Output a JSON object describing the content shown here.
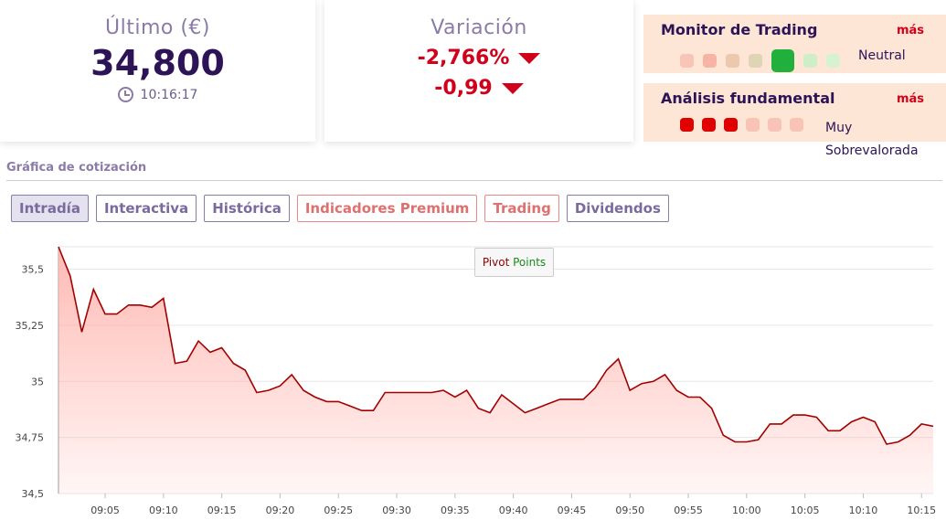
{
  "last": {
    "title": "Último (€)",
    "price": "34,800",
    "time": "10:16:17"
  },
  "variation": {
    "title": "Variación",
    "pct": "-2,766%",
    "abs": "-0,99"
  },
  "monitor": {
    "title": "Monitor de Trading",
    "more": "más",
    "status": "Neutral",
    "dots": [
      "#f9c4b8",
      "#f7b3a4",
      "#ecc8ad",
      "#e0d4b6",
      "#22b03c",
      "#cdeec6",
      "#d7f2d0"
    ]
  },
  "fundamental": {
    "title": "Análisis fundamental",
    "more": "más",
    "status": "Muy Sobrevalorada",
    "dots": [
      "#e00000",
      "#e00000",
      "#e00000",
      "#f9c4b8",
      "#f9c4b8",
      "#f9c4b8"
    ]
  },
  "section_label": "Gráfica de cotización",
  "tabs": [
    {
      "label": "Intradía",
      "kind": "active"
    },
    {
      "label": "Interactiva",
      "kind": "normal"
    },
    {
      "label": "Histórica",
      "kind": "normal"
    },
    {
      "label": "Indicadores Premium",
      "kind": "premium"
    },
    {
      "label": "Trading",
      "kind": "premium"
    },
    {
      "label": "Dividendos",
      "kind": "normal"
    }
  ],
  "pivot": {
    "word1": "Pivot",
    "word2": "Points"
  },
  "colors": {
    "line": "#a30000",
    "fill": "#ffb6b0",
    "accent": "#d0021b"
  },
  "chart_data": {
    "type": "area",
    "ylim": [
      34.5,
      35.6
    ],
    "y_ticks": [
      "35,5",
      "35,25",
      "35",
      "34,75",
      "34,5"
    ],
    "y_tick_values": [
      35.5,
      35.25,
      35.0,
      34.75,
      34.5
    ],
    "x_ticks": [
      "09:05",
      "09:10",
      "09:15",
      "09:20",
      "09:25",
      "09:30",
      "09:35",
      "09:40",
      "09:45",
      "09:50",
      "09:55",
      "10:00",
      "10:05",
      "10:10",
      "10:15"
    ],
    "x_tick_minutes": [
      5,
      10,
      15,
      20,
      25,
      30,
      35,
      40,
      45,
      50,
      55,
      60,
      65,
      70,
      75
    ],
    "x_range_minutes": [
      1,
      76
    ],
    "series": [
      {
        "t": [
          1,
          2,
          3,
          4,
          5,
          6,
          7,
          8,
          9,
          10,
          11,
          12,
          13,
          14,
          15,
          16,
          17,
          18,
          19,
          20,
          21,
          22,
          23,
          24,
          25,
          26,
          27,
          28,
          29,
          30,
          31,
          32,
          33,
          34,
          35,
          36,
          37,
          38,
          39,
          40,
          41,
          42,
          43,
          44,
          45,
          46,
          47,
          48,
          49,
          50,
          51,
          52,
          53,
          54,
          55,
          56,
          57,
          58,
          59,
          60,
          61,
          62,
          63,
          64,
          65,
          66,
          67,
          68,
          69,
          70,
          71,
          72,
          73,
          74,
          75,
          76
        ],
        "values": [
          35.6,
          35.47,
          35.22,
          35.41,
          35.3,
          35.3,
          35.34,
          35.34,
          35.33,
          35.37,
          35.08,
          35.09,
          35.18,
          35.13,
          35.15,
          35.08,
          35.05,
          34.95,
          34.96,
          34.98,
          35.03,
          34.96,
          34.93,
          34.91,
          34.91,
          34.89,
          34.87,
          34.87,
          34.95,
          34.95,
          34.95,
          34.95,
          34.95,
          34.96,
          34.93,
          34.96,
          34.88,
          34.86,
          34.94,
          34.9,
          34.86,
          34.88,
          34.9,
          34.92,
          34.92,
          34.92,
          34.97,
          35.05,
          35.1,
          34.96,
          34.99,
          35.0,
          35.03,
          34.96,
          34.93,
          34.93,
          34.88,
          34.76,
          34.73,
          34.73,
          34.74,
          34.81,
          34.81,
          34.85,
          34.85,
          34.84,
          34.78,
          34.78,
          34.82,
          34.84,
          34.82,
          34.72,
          34.73,
          34.76,
          34.81,
          34.8
        ]
      }
    ]
  }
}
